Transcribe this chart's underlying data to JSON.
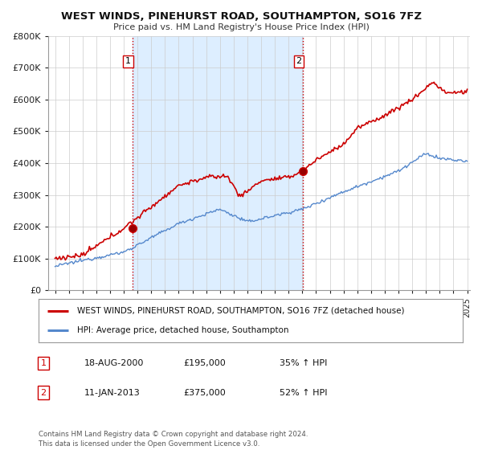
{
  "title": "WEST WINDS, PINEHURST ROAD, SOUTHAMPTON, SO16 7FZ",
  "subtitle": "Price paid vs. HM Land Registry's House Price Index (HPI)",
  "ylim": [
    0,
    800000
  ],
  "yticks": [
    0,
    100000,
    200000,
    300000,
    400000,
    500000,
    600000,
    700000,
    800000
  ],
  "sale1_x": 2000.63,
  "sale1_price": 195000,
  "sale2_x": 2013.04,
  "sale2_price": 375000,
  "property_line_color": "#cc0000",
  "hpi_line_color": "#5588cc",
  "vline_color": "#cc0000",
  "shade_color": "#ddeeff",
  "legend_label_property": "WEST WINDS, PINEHURST ROAD, SOUTHAMPTON, SO16 7FZ (detached house)",
  "legend_label_hpi": "HPI: Average price, detached house, Southampton",
  "table_row1": [
    "1",
    "18-AUG-2000",
    "£195,000",
    "35% ↑ HPI"
  ],
  "table_row2": [
    "2",
    "11-JAN-2013",
    "£375,000",
    "52% ↑ HPI"
  ],
  "footer": "Contains HM Land Registry data © Crown copyright and database right 2024.\nThis data is licensed under the Open Government Licence v3.0.",
  "background_color": "#ffffff",
  "grid_color": "#cccccc",
  "xstart": 1995,
  "xend": 2025
}
